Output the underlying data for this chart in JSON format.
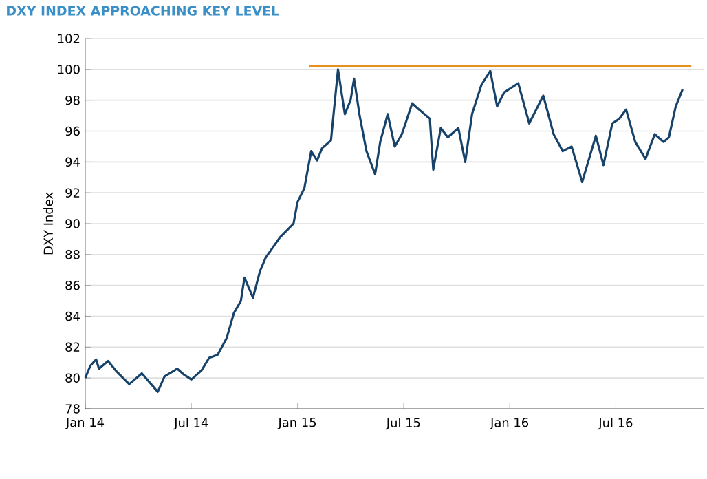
{
  "chart_data": {
    "type": "line",
    "title": "DXY INDEX APPROACHING KEY LEVEL",
    "ylabel": "DXY Index",
    "ylim": [
      78,
      102
    ],
    "yticks": [
      78,
      80,
      82,
      84,
      86,
      88,
      90,
      92,
      94,
      96,
      98,
      100,
      102
    ],
    "xlim": [
      "2014-01-01",
      "2016-12-01"
    ],
    "xticks": [
      {
        "value": "2014-01-01",
        "label": "Jan 14"
      },
      {
        "value": "2014-07-01",
        "label": "Jul 14"
      },
      {
        "value": "2015-01-01",
        "label": "Jan 15"
      },
      {
        "value": "2015-07-01",
        "label": "Jul 15"
      },
      {
        "value": "2016-01-01",
        "label": "Jan 16"
      },
      {
        "value": "2016-07-01",
        "label": "Jul 16"
      }
    ],
    "grid": "y",
    "marker": "none",
    "line_style": "solid",
    "series": [
      {
        "color": "#17436b",
        "x": [
          "2014-01-01",
          "2014-01-10",
          "2014-01-20",
          "2014-01-25",
          "2014-02-09",
          "2014-02-23",
          "2014-03-16",
          "2014-04-07",
          "2014-04-25",
          "2014-05-04",
          "2014-05-16",
          "2014-06-07",
          "2014-06-19",
          "2014-07-01",
          "2014-07-19",
          "2014-08-01",
          "2014-08-16",
          "2014-09-01",
          "2014-09-13",
          "2014-09-25",
          "2014-10-01",
          "2014-10-16",
          "2014-10-28",
          "2014-11-07",
          "2014-12-01",
          "2014-12-25",
          "2015-01-01",
          "2015-01-13",
          "2015-01-25",
          "2015-02-04",
          "2015-02-12",
          "2015-02-26",
          "2015-03-10",
          "2015-03-22",
          "2015-04-01",
          "2015-04-07",
          "2015-04-16",
          "2015-04-28",
          "2015-05-13",
          "2015-05-22",
          "2015-06-04",
          "2015-06-16",
          "2015-06-28",
          "2015-07-16",
          "2015-07-28",
          "2015-08-16",
          "2015-08-22",
          "2015-09-04",
          "2015-09-16",
          "2015-10-04",
          "2015-10-16",
          "2015-10-28",
          "2015-11-13",
          "2015-11-28",
          "2015-12-10",
          "2015-12-22",
          "2016-01-16",
          "2016-02-04",
          "2016-02-27",
          "2016-03-16",
          "2016-04-01",
          "2016-04-16",
          "2016-05-04",
          "2016-05-28",
          "2016-06-10",
          "2016-06-25",
          "2016-07-07",
          "2016-07-19",
          "2016-08-04",
          "2016-08-22",
          "2016-09-07",
          "2016-09-22",
          "2016-10-01",
          "2016-10-13",
          "2016-10-25"
        ],
        "values": [
          80.0,
          80.8,
          81.2,
          80.6,
          81.1,
          80.4,
          79.6,
          80.3,
          79.5,
          79.1,
          80.1,
          80.6,
          80.2,
          79.9,
          80.5,
          81.3,
          81.5,
          82.6,
          84.2,
          85.0,
          86.5,
          85.2,
          86.9,
          87.8,
          89.1,
          90.0,
          91.4,
          92.3,
          94.7,
          94.1,
          94.9,
          95.4,
          100.0,
          97.1,
          98.0,
          99.4,
          97.1,
          94.7,
          93.2,
          95.3,
          97.1,
          95.0,
          95.8,
          97.8,
          97.4,
          96.8,
          93.5,
          96.2,
          95.6,
          96.2,
          94.0,
          97.1,
          99.0,
          99.9,
          97.6,
          98.5,
          99.1,
          96.5,
          98.3,
          95.8,
          94.7,
          95.0,
          92.7,
          95.7,
          93.8,
          96.5,
          96.8,
          97.4,
          95.3,
          94.2,
          95.8,
          95.3,
          95.6,
          97.6,
          98.7
        ]
      },
      {
        "color": "#e8901e",
        "x": [
          "2015-01-22",
          "2016-11-09"
        ],
        "values": [
          100.2,
          100.2
        ]
      }
    ]
  }
}
